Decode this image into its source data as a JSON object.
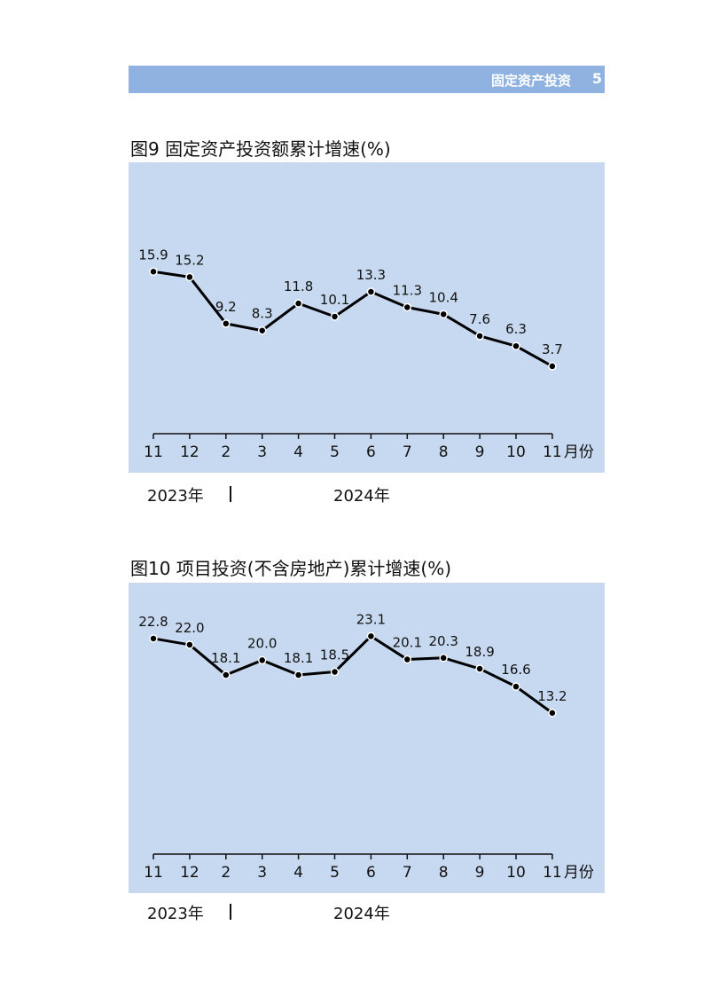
{
  "header": {
    "section": "固定资产投资",
    "page": "5"
  },
  "chart_data": [
    {
      "type": "line",
      "title": "图9 固定资产投资额累计增速(%)",
      "categories": [
        "11",
        "12",
        "2",
        "3",
        "4",
        "5",
        "6",
        "7",
        "8",
        "9",
        "10",
        "11"
      ],
      "x_unit": "月份",
      "values": [
        15.9,
        15.2,
        9.2,
        8.3,
        11.8,
        10.1,
        13.3,
        11.3,
        10.4,
        7.6,
        6.3,
        3.7
      ],
      "labels": [
        "15.9",
        "15.2",
        "9.2",
        "8.3",
        "11.8",
        "10.1",
        "13.3",
        "11.3",
        "10.4",
        "7.6",
        "6.3",
        "3.7"
      ],
      "ylim": [
        -5,
        30
      ],
      "years": {
        "y2023": "2023年",
        "y2024": "2024年"
      },
      "colors": {
        "background": "#c7d9f0",
        "line": "#000000",
        "marker_fill": "#000000",
        "marker_edge": "#ffffff"
      },
      "grid": false
    },
    {
      "type": "line",
      "title": "图10 项目投资(不含房地产)累计增速(%)",
      "categories": [
        "11",
        "12",
        "2",
        "3",
        "4",
        "5",
        "6",
        "7",
        "8",
        "9",
        "10",
        "11"
      ],
      "x_unit": "月份",
      "values": [
        22.8,
        22.0,
        18.1,
        20.0,
        18.1,
        18.5,
        23.1,
        20.1,
        20.3,
        18.9,
        16.6,
        13.2
      ],
      "labels": [
        "22.8",
        "22.0",
        "18.1",
        "20.0",
        "18.1",
        "18.5",
        "23.1",
        "20.1",
        "20.3",
        "18.9",
        "16.6",
        "13.2"
      ],
      "ylim": [
        -5,
        30
      ],
      "years": {
        "y2023": "2023年",
        "y2024": "2024年"
      },
      "colors": {
        "background": "#c7d9f0",
        "line": "#000000",
        "marker_fill": "#000000",
        "marker_edge": "#ffffff"
      },
      "grid": false
    }
  ]
}
